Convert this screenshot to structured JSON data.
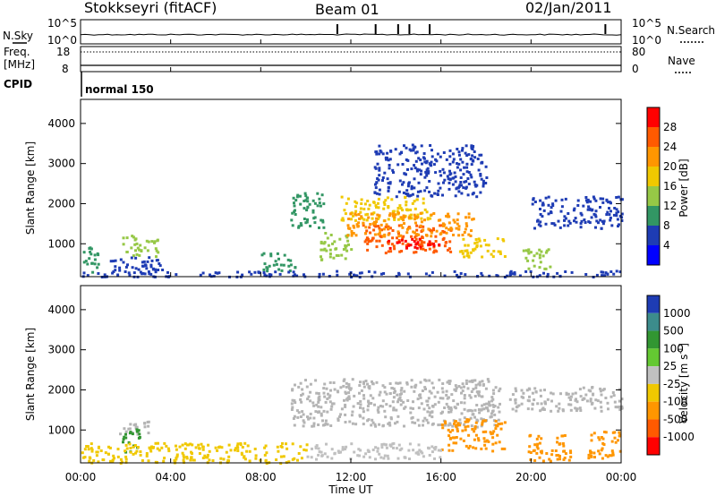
{
  "header": {
    "title": "Stokkseyri (fitACF)",
    "beam": "Beam 01",
    "date": "02/Jan/2011"
  },
  "top_panels": {
    "nsky_label": "N.Sky",
    "nsky_ticks": [
      "10^5",
      "10^0"
    ],
    "nsearch_label": "N.Search",
    "nsearch_ticks": [
      "10^5",
      "10^0"
    ],
    "freq_label": "Freq.",
    "freq_unit": "[MHz]",
    "freq_ticks": [
      "18",
      "8"
    ],
    "nave_label": "Nave",
    "nave_ticks": [
      "80",
      "0"
    ],
    "cpid_label": "CPID",
    "cpid_value": "normal 150"
  },
  "x_axis": {
    "ticks": [
      "00:00",
      "04:00",
      "08:00",
      "12:00",
      "16:00",
      "20:00",
      "00:00"
    ],
    "label": "Time UT",
    "range_hours": [
      0,
      24
    ]
  },
  "y_axis": {
    "label": "Slant Range [km]",
    "ticks": [
      "1000",
      "2000",
      "3000",
      "4000"
    ],
    "range_km": [
      180,
      4600
    ]
  },
  "power_colorbar": {
    "label": "Power [dB]",
    "ticks": [
      "28",
      "24",
      "20",
      "16",
      "12",
      "8",
      "4"
    ],
    "colors": [
      "#ff0000",
      "#ff5a00",
      "#ff9600",
      "#f0c800",
      "#96c846",
      "#329664",
      "#1e3cb4",
      "#0000ff"
    ]
  },
  "velocity_colorbar": {
    "label": "Velocity [m s",
    "label_superscript": "-1",
    "label_close": "]",
    "ticks": [
      "1000",
      "500",
      "100",
      "25",
      "-25",
      "-100",
      "-500",
      "-1000"
    ],
    "colors": [
      "#1e3cb4",
      "#3c8c8c",
      "#329632",
      "#64c832",
      "#c0c0c0",
      "#f0c800",
      "#ff9600",
      "#ff5a00",
      "#ff0000"
    ],
    "ground_scatter_color": "#b4b4b4"
  },
  "chart_data": {
    "type": "heatmap",
    "x_unit": "hours UT",
    "y_unit": "km",
    "power_regions": [
      {
        "x": [
          0.1,
          0.8
        ],
        "y": [
          300,
          1000
        ],
        "level": 5
      },
      {
        "x": [
          1.8,
          3.4
        ],
        "y": [
          700,
          1250
        ],
        "level": 4
      },
      {
        "x": [
          1.2,
          3.6
        ],
        "y": [
          300,
          700
        ],
        "level": 6
      },
      {
        "x": [
          8.0,
          9.5
        ],
        "y": [
          350,
          800
        ],
        "level": 5
      },
      {
        "x": [
          9.3,
          10.8
        ],
        "y": [
          1400,
          2300
        ],
        "level": 5
      },
      {
        "x": [
          10.6,
          12.0
        ],
        "y": [
          600,
          1300
        ],
        "level": 4
      },
      {
        "x": [
          11.5,
          15.5
        ],
        "y": [
          1600,
          2200
        ],
        "level": 3
      },
      {
        "x": [
          12.5,
          16.5
        ],
        "y": [
          800,
          1500
        ],
        "level": 1
      },
      {
        "x": [
          13.5,
          16.0
        ],
        "y": [
          900,
          1150
        ],
        "level": 0
      },
      {
        "x": [
          11.8,
          17.5
        ],
        "y": [
          1200,
          1800
        ],
        "level": 2
      },
      {
        "x": [
          16.8,
          18.8
        ],
        "y": [
          700,
          1200
        ],
        "level": 3
      },
      {
        "x": [
          13.0,
          18.0
        ],
        "y": [
          2200,
          3500
        ],
        "level": 6
      },
      {
        "x": [
          19.5,
          20.8
        ],
        "y": [
          400,
          900
        ],
        "level": 4
      },
      {
        "x": [
          20.0,
          24.0
        ],
        "y": [
          1400,
          2200
        ],
        "level": 6
      },
      {
        "x": [
          0,
          24
        ],
        "y": [
          200,
          350
        ],
        "level": 6
      }
    ],
    "velocity_regions": [
      {
        "x": [
          9.3,
          18.6
        ],
        "y": [
          1100,
          2300
        ],
        "class": "ground"
      },
      {
        "x": [
          19.0,
          24.0
        ],
        "y": [
          1500,
          2100
        ],
        "class": "ground"
      },
      {
        "x": [
          1.5,
          3.0
        ],
        "y": [
          900,
          1250
        ],
        "class": "ground"
      },
      {
        "x": [
          1.8,
          2.6
        ],
        "y": [
          450,
          1050
        ],
        "value": 300
      },
      {
        "x": [
          16.0,
          18.8
        ],
        "y": [
          500,
          1300
        ],
        "value": -350
      },
      {
        "x": [
          19.8,
          21.8
        ],
        "y": [
          250,
          900
        ],
        "value": -250
      },
      {
        "x": [
          0.0,
          10.0
        ],
        "y": [
          200,
          700
        ],
        "value": -60
      },
      {
        "x": [
          10.0,
          16.0
        ],
        "y": [
          300,
          700
        ],
        "value": 20
      },
      {
        "x": [
          22.5,
          24.0
        ],
        "y": [
          300,
          1000
        ],
        "value": -200
      }
    ],
    "nsky_spikes_hours": [
      11.4,
      13.1,
      14.1,
      14.6,
      15.5,
      23.3
    ]
  }
}
